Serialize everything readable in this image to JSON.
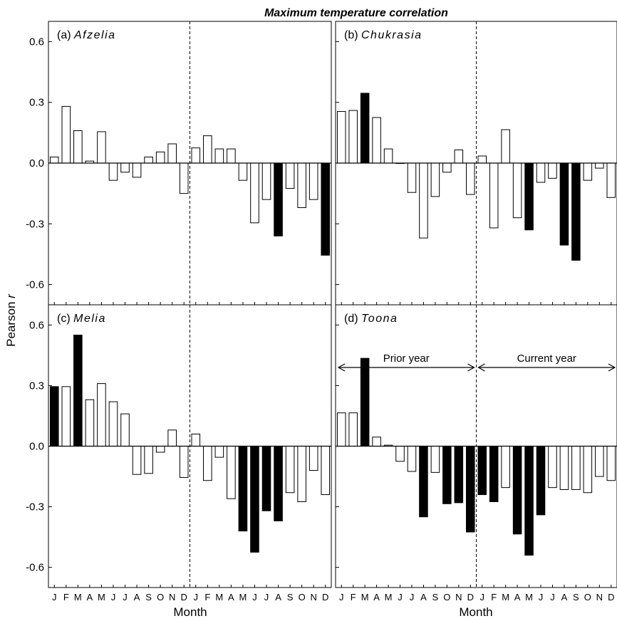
{
  "chart_data": {
    "type": "bar",
    "title": "Maximum temperature correlation",
    "xlabel": "Month",
    "ylabel_prefix": "Pearson ",
    "ylabel_var": "r",
    "ylim": [
      -0.7,
      0.7
    ],
    "yticks": [
      "0.6",
      "0.3",
      "0.0",
      "-0.3",
      "-0.6"
    ],
    "yticks_values": [
      0.6,
      0.3,
      0.0,
      -0.3,
      -0.6
    ],
    "categories": [
      "J",
      "F",
      "M",
      "A",
      "M",
      "J",
      "J",
      "A",
      "S",
      "O",
      "N",
      "D",
      "J",
      "F",
      "M",
      "A",
      "M",
      "J",
      "J",
      "A",
      "S",
      "O",
      "N",
      "D"
    ],
    "annotations": {
      "prior_year": "Prior year",
      "current_year": "Current year"
    },
    "panels": [
      {
        "label_prefix": "(a) ",
        "label_genus": "Afzelia",
        "values": [
          0.03,
          0.28,
          0.16,
          0.01,
          0.155,
          -0.085,
          -0.045,
          -0.07,
          0.03,
          0.055,
          0.095,
          -0.15,
          0.075,
          0.135,
          0.07,
          0.07,
          -0.085,
          -0.295,
          -0.18,
          -0.36,
          -0.125,
          -0.22,
          -0.18,
          -0.455
        ],
        "significant": [
          false,
          false,
          false,
          false,
          false,
          false,
          false,
          false,
          false,
          false,
          false,
          false,
          false,
          false,
          false,
          false,
          false,
          false,
          false,
          true,
          false,
          false,
          false,
          true
        ]
      },
      {
        "label_prefix": "(b) ",
        "label_genus": "Chukrasia",
        "values": [
          0.255,
          0.26,
          0.345,
          0.225,
          0.07,
          0.0,
          -0.145,
          -0.37,
          -0.165,
          -0.045,
          0.065,
          -0.155,
          0.035,
          -0.32,
          0.165,
          -0.27,
          -0.33,
          -0.095,
          -0.075,
          -0.405,
          -0.48,
          -0.085,
          -0.025,
          -0.17
        ],
        "significant": [
          false,
          false,
          true,
          false,
          false,
          false,
          false,
          false,
          false,
          false,
          false,
          false,
          false,
          false,
          false,
          false,
          true,
          false,
          false,
          true,
          true,
          false,
          false,
          false
        ]
      },
      {
        "label_prefix": "(c) ",
        "label_genus": "Melia",
        "values": [
          0.295,
          0.295,
          0.55,
          0.23,
          0.31,
          0.22,
          0.16,
          -0.14,
          -0.135,
          -0.03,
          0.08,
          -0.155,
          0.06,
          -0.17,
          -0.055,
          -0.26,
          -0.42,
          -0.525,
          -0.32,
          -0.37,
          -0.23,
          -0.275,
          -0.12,
          -0.24
        ],
        "significant": [
          true,
          false,
          true,
          false,
          false,
          false,
          false,
          false,
          false,
          false,
          false,
          false,
          false,
          false,
          false,
          false,
          true,
          true,
          true,
          true,
          false,
          false,
          false,
          false
        ]
      },
      {
        "label_prefix": "(d) ",
        "label_genus": "Toona",
        "values": [
          0.165,
          0.165,
          0.435,
          0.045,
          0.005,
          -0.075,
          -0.125,
          -0.35,
          -0.13,
          -0.285,
          -0.28,
          -0.425,
          -0.24,
          -0.275,
          -0.205,
          -0.435,
          -0.54,
          -0.34,
          -0.205,
          -0.215,
          -0.215,
          -0.23,
          -0.15,
          -0.17
        ],
        "significant": [
          false,
          false,
          true,
          false,
          false,
          false,
          false,
          true,
          false,
          true,
          true,
          true,
          true,
          true,
          false,
          true,
          true,
          true,
          false,
          false,
          false,
          false,
          false,
          false
        ]
      }
    ]
  },
  "colors": {
    "significant": "#000000",
    "nonsignificant": "#ffffff",
    "stroke": "#000000"
  }
}
